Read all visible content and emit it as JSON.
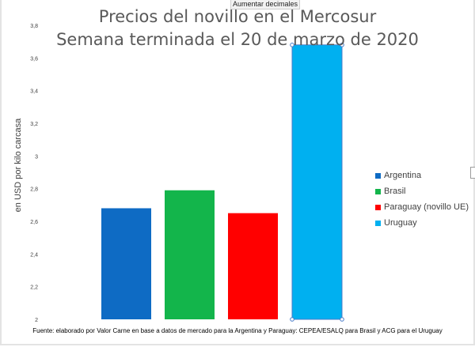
{
  "tooltip": "Aumentar decimales",
  "chart_data": {
    "type": "bar",
    "title": "Precios del novillo en el Mercosur",
    "subtitle": "Semana terminada el 20 de marzo de 2020",
    "xlabel": "",
    "ylabel": "en USD por kilo carcasa",
    "categories": [
      "Argentina",
      "Brasil",
      "Paraguay (novillo UE)",
      "Uruguay"
    ],
    "values": [
      2.68,
      2.79,
      2.65,
      3.68
    ],
    "colors": [
      "#0e6bc4",
      "#13b54b",
      "#ff0000",
      "#00b0f0"
    ],
    "ylim": [
      2.0,
      3.8
    ],
    "yticks": [
      "2",
      "2,2",
      "2,4",
      "2,6",
      "2,8",
      "3",
      "3,2",
      "3,4",
      "3,6",
      "3,8"
    ],
    "grid": false,
    "legend_position": "right",
    "selected_category": "Uruguay"
  },
  "legend": {
    "items": [
      {
        "label": "Argentina",
        "color": "#0e6bc4"
      },
      {
        "label": "Brasil",
        "color": "#13b54b"
      },
      {
        "label": "Paraguay (novillo UE)",
        "color": "#ff0000"
      },
      {
        "label": "Uruguay",
        "color": "#00b0f0"
      }
    ]
  },
  "source": "Fuente: elaborado por Valor Carne en base a datos de mercado para la Argentina y Paraguay: CEPEA/ESALQ para Brasil y ACG para el Uruguay"
}
